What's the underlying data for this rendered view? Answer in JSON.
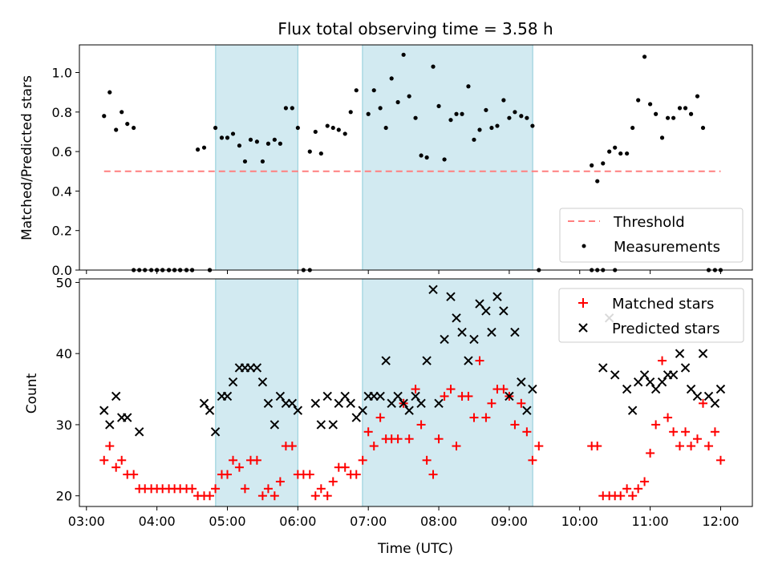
{
  "chart_data": [
    {
      "type": "scatter",
      "title": "Flux total observing time = 3.58 h",
      "ylabel": "Matched/Predicted stars",
      "xlabel": "",
      "x_unit": "hours UTC",
      "xlim": [
        2.9,
        12.45
      ],
      "ylim": [
        0,
        1.14
      ],
      "yticks": [
        0.0,
        0.2,
        0.4,
        0.6,
        0.8,
        1.0
      ],
      "ytick_labels": [
        "0.0",
        "0.2",
        "0.4",
        "0.6",
        "0.8",
        "1.0"
      ],
      "grid": false,
      "legend_position": "lower-right",
      "shaded_intervals": [
        [
          4.833,
          6.0
        ],
        [
          6.917,
          9.333
        ]
      ],
      "shade_color": "#add8e6",
      "series": [
        {
          "name": "Threshold",
          "kind": "dashed-line",
          "color": "#ff7f7f",
          "x": [
            3.25,
            12.0
          ],
          "y": [
            0.5,
            0.5
          ]
        },
        {
          "name": "Measurements",
          "kind": "points",
          "color": "#000000",
          "x": [
            3.25,
            3.33,
            3.42,
            3.5,
            3.58,
            3.67,
            3.75,
            4.0,
            4.08,
            4.17,
            4.25,
            4.33,
            4.42,
            4.5,
            4.58,
            4.67,
            4.75,
            4.83,
            4.92,
            5.0,
            5.08,
            5.17,
            5.25,
            5.33,
            5.42,
            5.5,
            5.58,
            5.67,
            5.75,
            5.83,
            5.92,
            6.0,
            6.17,
            6.25,
            6.33,
            6.42,
            6.5,
            6.58,
            6.67,
            6.75,
            6.83,
            7.0,
            7.08,
            7.17,
            7.25,
            7.33,
            7.42,
            7.5,
            7.58,
            7.67,
            7.75,
            7.83,
            7.92,
            8.0,
            8.08,
            8.17,
            8.25,
            8.33,
            8.42,
            8.5,
            8.58,
            8.67,
            8.75,
            8.83,
            8.92,
            9.0,
            9.08,
            9.17,
            9.25,
            9.33,
            10.17,
            10.25,
            10.33,
            10.42,
            10.5,
            10.58,
            10.67,
            10.75,
            10.83,
            10.92,
            11.0,
            11.08,
            11.17,
            11.25,
            11.33,
            11.42,
            11.5,
            11.58,
            11.67,
            11.75,
            11.83,
            11.92,
            12.0,
            3.67,
            3.83,
            3.92,
            4.0,
            4.08,
            4.17,
            4.25,
            4.33,
            4.42,
            4.5,
            4.75,
            6.08,
            6.17,
            9.42,
            10.17,
            10.25,
            10.33,
            10.5
          ],
          "y": [
            0.78,
            0.9,
            0.71,
            0.8,
            0.74,
            0.72,
            0,
            0,
            0,
            0,
            0,
            0,
            0,
            0,
            0.61,
            0.62,
            0,
            0.72,
            0.67,
            0.67,
            0.69,
            0.63,
            0.55,
            0.66,
            0.65,
            0.55,
            0.64,
            0.66,
            0.64,
            0.82,
            0.82,
            0.72,
            0.6,
            0.7,
            0.59,
            0.73,
            0.72,
            0.71,
            0.69,
            0.8,
            0.91,
            0.79,
            0.91,
            0.82,
            0.72,
            0.97,
            0.85,
            1.09,
            0.88,
            0.77,
            0.58,
            0.57,
            1.03,
            0.83,
            0.56,
            0.76,
            0.79,
            0.79,
            0.93,
            0.66,
            0.71,
            0.81,
            0.72,
            0.73,
            0.86,
            0.77,
            0.8,
            0.78,
            0.77,
            0.73,
            0.53,
            0.45,
            0.54,
            0.6,
            0.62,
            0.59,
            0.59,
            0.72,
            0.86,
            1.08,
            0.84,
            0.79,
            0.67,
            0.77,
            0.77,
            0.82,
            0.82,
            0.79,
            0.88,
            0.72,
            0,
            0,
            0,
            0,
            0,
            0,
            0,
            0,
            0,
            0,
            0,
            0,
            0,
            0,
            0,
            0,
            0,
            0,
            0,
            0,
            0
          ]
        }
      ]
    },
    {
      "type": "scatter",
      "title": "",
      "xlabel": "Time (UTC)",
      "ylabel": "Count",
      "xlim": [
        2.9,
        12.45
      ],
      "ylim": [
        18.5,
        50.5
      ],
      "xticks": [
        3,
        4,
        5,
        6,
        7,
        8,
        9,
        10,
        11,
        12
      ],
      "xtick_labels": [
        "03:00",
        "04:00",
        "05:00",
        "06:00",
        "07:00",
        "08:00",
        "09:00",
        "10:00",
        "11:00",
        "12:00"
      ],
      "yticks": [
        20,
        30,
        40,
        50
      ],
      "ytick_labels": [
        "20",
        "30",
        "40",
        "50"
      ],
      "grid": false,
      "legend_position": "upper-right",
      "shaded_intervals": [
        [
          4.833,
          6.0
        ],
        [
          6.917,
          9.333
        ]
      ],
      "shade_color": "#add8e6",
      "series": [
        {
          "name": "Matched stars",
          "marker": "+",
          "color": "#ff0000",
          "x": [
            3.25,
            3.33,
            3.42,
            3.5,
            3.58,
            3.67,
            3.75,
            3.83,
            3.92,
            4.0,
            4.08,
            4.17,
            4.25,
            4.33,
            4.42,
            4.5,
            4.58,
            4.67,
            4.75,
            4.83,
            4.92,
            5.0,
            5.08,
            5.17,
            5.25,
            5.33,
            5.42,
            5.5,
            5.58,
            5.67,
            5.75,
            5.83,
            5.92,
            6.0,
            6.08,
            6.17,
            6.25,
            6.33,
            6.42,
            6.5,
            6.58,
            6.67,
            6.75,
            6.83,
            6.92,
            7.0,
            7.08,
            7.17,
            7.25,
            7.33,
            7.42,
            7.5,
            7.58,
            7.67,
            7.75,
            7.83,
            7.92,
            8.0,
            8.08,
            8.17,
            8.25,
            8.33,
            8.42,
            8.5,
            8.58,
            8.67,
            8.75,
            8.83,
            8.92,
            9.0,
            9.08,
            9.17,
            9.25,
            9.33,
            9.42,
            10.17,
            10.25,
            10.33,
            10.42,
            10.5,
            10.58,
            10.67,
            10.75,
            10.83,
            10.92,
            11.0,
            11.08,
            11.17,
            11.25,
            11.33,
            11.42,
            11.5,
            11.58,
            11.67,
            11.75,
            11.83,
            11.92,
            12.0
          ],
          "y": [
            25,
            27,
            24,
            25,
            23,
            23,
            21,
            21,
            21,
            21,
            21,
            21,
            21,
            21,
            21,
            21,
            20,
            20,
            20,
            21,
            23,
            23,
            25,
            24,
            21,
            25,
            25,
            20,
            21,
            20,
            22,
            27,
            27,
            23,
            23,
            23,
            20,
            21,
            20,
            22,
            24,
            24,
            23,
            23,
            25,
            29,
            27,
            31,
            28,
            28,
            28,
            33,
            28,
            35,
            30,
            25,
            23,
            28,
            34,
            35,
            27,
            34,
            34,
            31,
            39,
            31,
            33,
            35,
            35,
            34,
            30,
            33,
            29,
            25,
            27,
            27,
            27,
            20,
            20,
            20,
            20,
            21,
            20,
            21,
            22,
            26,
            30,
            39,
            31,
            29,
            27,
            29,
            27,
            28,
            33,
            27,
            29,
            25
          ]
        },
        {
          "name": "Predicted stars",
          "marker": "x",
          "color": "#000000",
          "x": [
            3.25,
            3.33,
            3.42,
            3.5,
            3.58,
            3.75,
            4.67,
            4.75,
            4.83,
            4.92,
            5.0,
            5.08,
            5.17,
            5.25,
            5.33,
            5.42,
            5.5,
            5.58,
            5.67,
            5.75,
            5.83,
            5.92,
            6.0,
            6.25,
            6.33,
            6.42,
            6.5,
            6.58,
            6.67,
            6.75,
            6.83,
            6.92,
            7.0,
            7.08,
            7.17,
            7.25,
            7.33,
            7.42,
            7.5,
            7.58,
            7.67,
            7.75,
            7.83,
            7.92,
            8.0,
            8.08,
            8.17,
            8.25,
            8.33,
            8.42,
            8.5,
            8.58,
            8.67,
            8.75,
            8.83,
            8.92,
            9.0,
            9.08,
            9.17,
            9.25,
            9.33,
            10.33,
            10.42,
            10.5,
            10.67,
            10.75,
            10.83,
            10.92,
            11.0,
            11.08,
            11.17,
            11.25,
            11.33,
            11.42,
            11.5,
            11.58,
            11.67,
            11.75,
            11.83,
            11.92,
            12.0
          ],
          "y": [
            32,
            30,
            34,
            31,
            31,
            29,
            33,
            32,
            29,
            34,
            34,
            36,
            38,
            38,
            38,
            38,
            36,
            33,
            30,
            34,
            33,
            33,
            32,
            33,
            30,
            34,
            30,
            33,
            34,
            33,
            31,
            32,
            34,
            34,
            34,
            39,
            33,
            34,
            33,
            32,
            34,
            33,
            39,
            49,
            33,
            42,
            48,
            45,
            43,
            39,
            42,
            47,
            46,
            43,
            48,
            46,
            34,
            43,
            36,
            32,
            35,
            38,
            45,
            37,
            35,
            32,
            36,
            37,
            36,
            35,
            36,
            37,
            37,
            40,
            38,
            35,
            34,
            40,
            34,
            33,
            35
          ]
        }
      ]
    }
  ]
}
